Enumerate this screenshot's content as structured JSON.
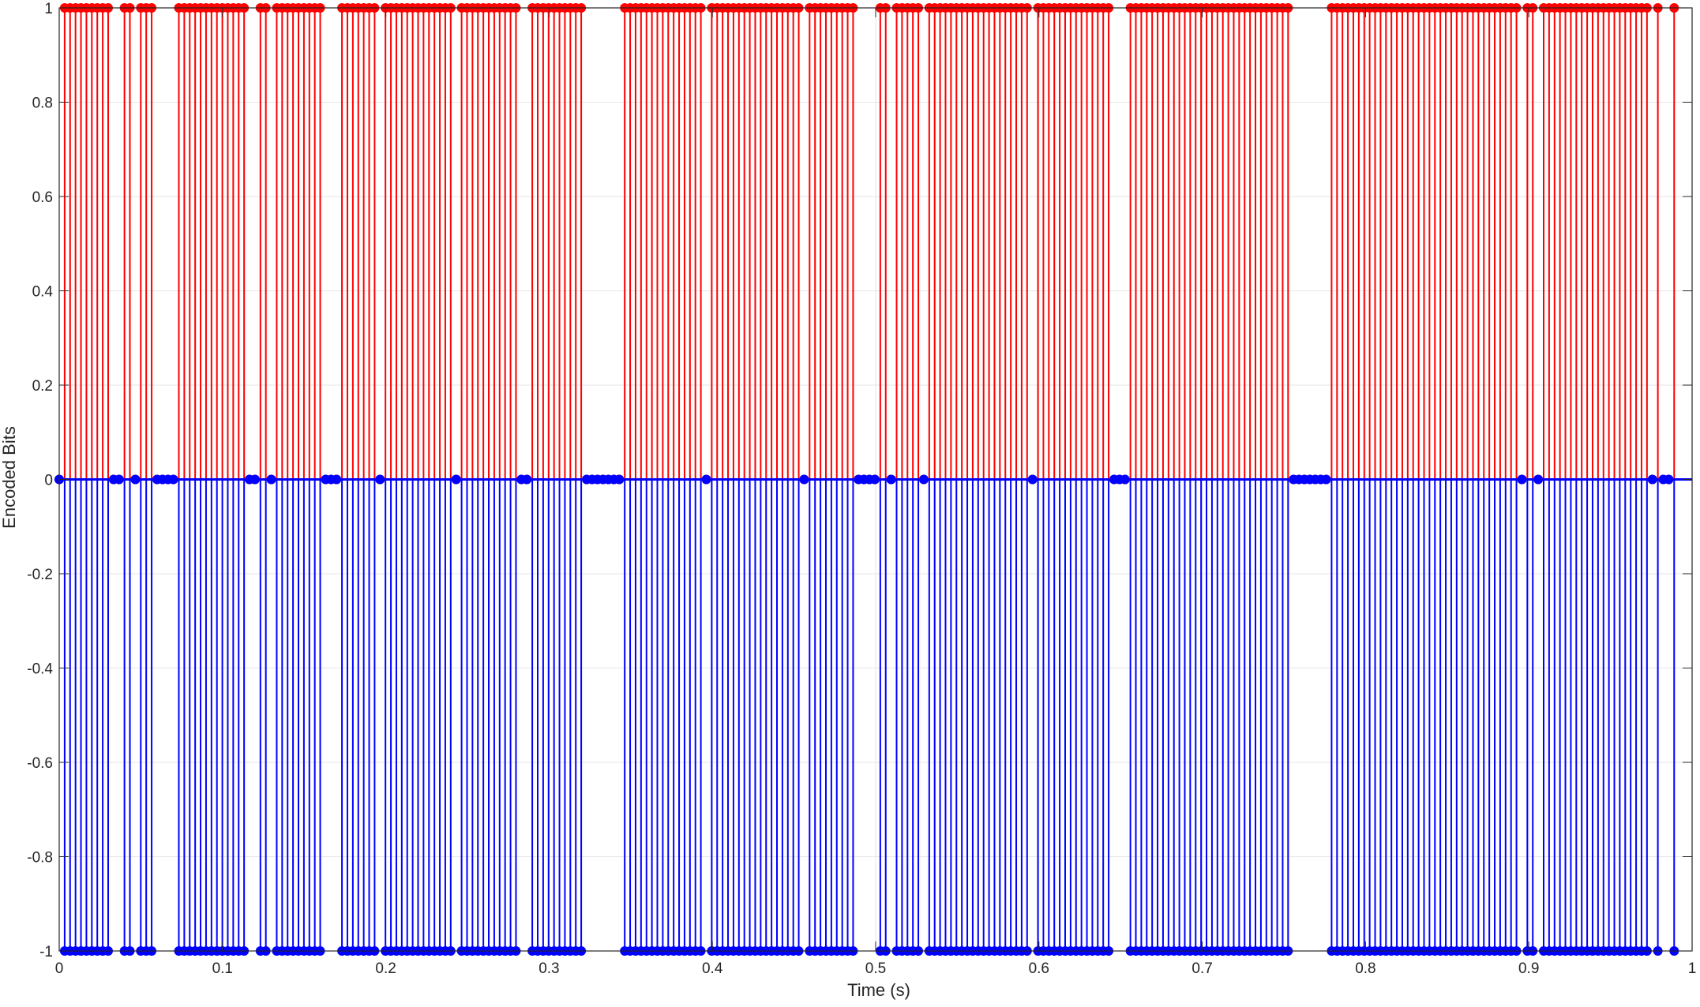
{
  "chart_data": {
    "type": "stem",
    "title": "",
    "xlabel": "Time (s)",
    "ylabel": "Encoded Bits",
    "xlim": [
      0,
      1
    ],
    "ylim": [
      -1,
      1
    ],
    "grid": true,
    "legend": "none",
    "xticks": [
      "0",
      "0.1",
      "0.2",
      "0.3",
      "0.4",
      "0.5",
      "0.6",
      "0.7",
      "0.8",
      "0.9",
      "1"
    ],
    "yticks": [
      "-1",
      "-0.8",
      "-0.6",
      "-0.4",
      "-0.2",
      "0",
      "0.2",
      "0.4",
      "0.6",
      "0.8",
      "1"
    ],
    "sample_interval": 0.00333,
    "bit_pattern": "0111111111001101110000111111111111100110111111111000111111101111111111111011111111111001111111111000000011111111111111101111111111111111101111111110000110111110111111111111111111101111111111111100011111111111111111111111111111100000001111111111111111111111111111111111101101111111111111111111101001",
    "series": [
      {
        "name": "",
        "color": "#ff0000",
        "values_description": "1 where bit is 1"
      },
      {
        "name": "",
        "color": "#0000ff",
        "values_description": "-1 where bit is 1"
      }
    ]
  }
}
